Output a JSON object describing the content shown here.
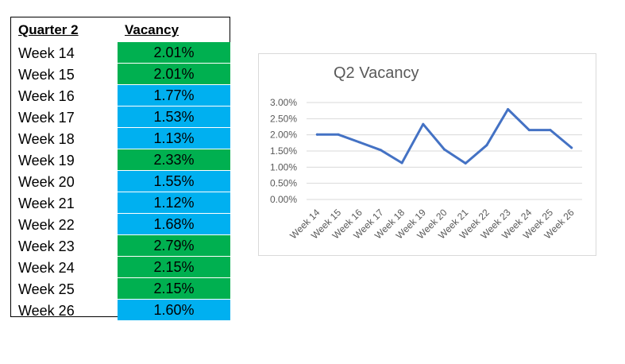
{
  "table": {
    "headers": {
      "period": "Quarter 2",
      "value": "Vacancy"
    },
    "rows": [
      {
        "week": "Week 14",
        "vacancy": "2.01%",
        "fill": "#00b050"
      },
      {
        "week": "Week 15",
        "vacancy": "2.01%",
        "fill": "#00b050"
      },
      {
        "week": "Week 16",
        "vacancy": "1.77%",
        "fill": "#00b0f0"
      },
      {
        "week": "Week 17",
        "vacancy": "1.53%",
        "fill": "#00b0f0"
      },
      {
        "week": "Week 18",
        "vacancy": "1.13%",
        "fill": "#00b0f0"
      },
      {
        "week": "Week 19",
        "vacancy": "2.33%",
        "fill": "#00b050"
      },
      {
        "week": "Week 20",
        "vacancy": "1.55%",
        "fill": "#00b0f0"
      },
      {
        "week": "Week 21",
        "vacancy": "1.12%",
        "fill": "#00b0f0"
      },
      {
        "week": "Week 22",
        "vacancy": "1.68%",
        "fill": "#00b0f0"
      },
      {
        "week": "Week 23",
        "vacancy": "2.79%",
        "fill": "#00b050"
      },
      {
        "week": "Week 24",
        "vacancy": "2.15%",
        "fill": "#00b050"
      },
      {
        "week": "Week 25",
        "vacancy": "2.15%",
        "fill": "#00b050"
      },
      {
        "week": "Week 26",
        "vacancy": "1.60%",
        "fill": "#00b0f0"
      }
    ]
  },
  "chart_data": {
    "type": "line",
    "title": "Q2 Vacancy",
    "xlabel": "",
    "ylabel": "",
    "categories": [
      "Week 14",
      "Week 15",
      "Week 16",
      "Week 17",
      "Week 18",
      "Week 19",
      "Week 20",
      "Week 21",
      "Week 22",
      "Week 23",
      "Week 24",
      "Week 25",
      "Week 26"
    ],
    "series": [
      {
        "values": [
          2.01,
          2.01,
          1.77,
          1.53,
          1.13,
          2.33,
          1.55,
          1.12,
          1.68,
          2.79,
          2.15,
          2.15,
          1.6
        ],
        "color": "#4472c4"
      }
    ],
    "yticks": [
      "0.00%",
      "0.50%",
      "1.00%",
      "1.50%",
      "2.00%",
      "2.50%",
      "3.00%"
    ],
    "ylim": [
      0,
      3
    ],
    "grid": true,
    "legend": "none"
  }
}
